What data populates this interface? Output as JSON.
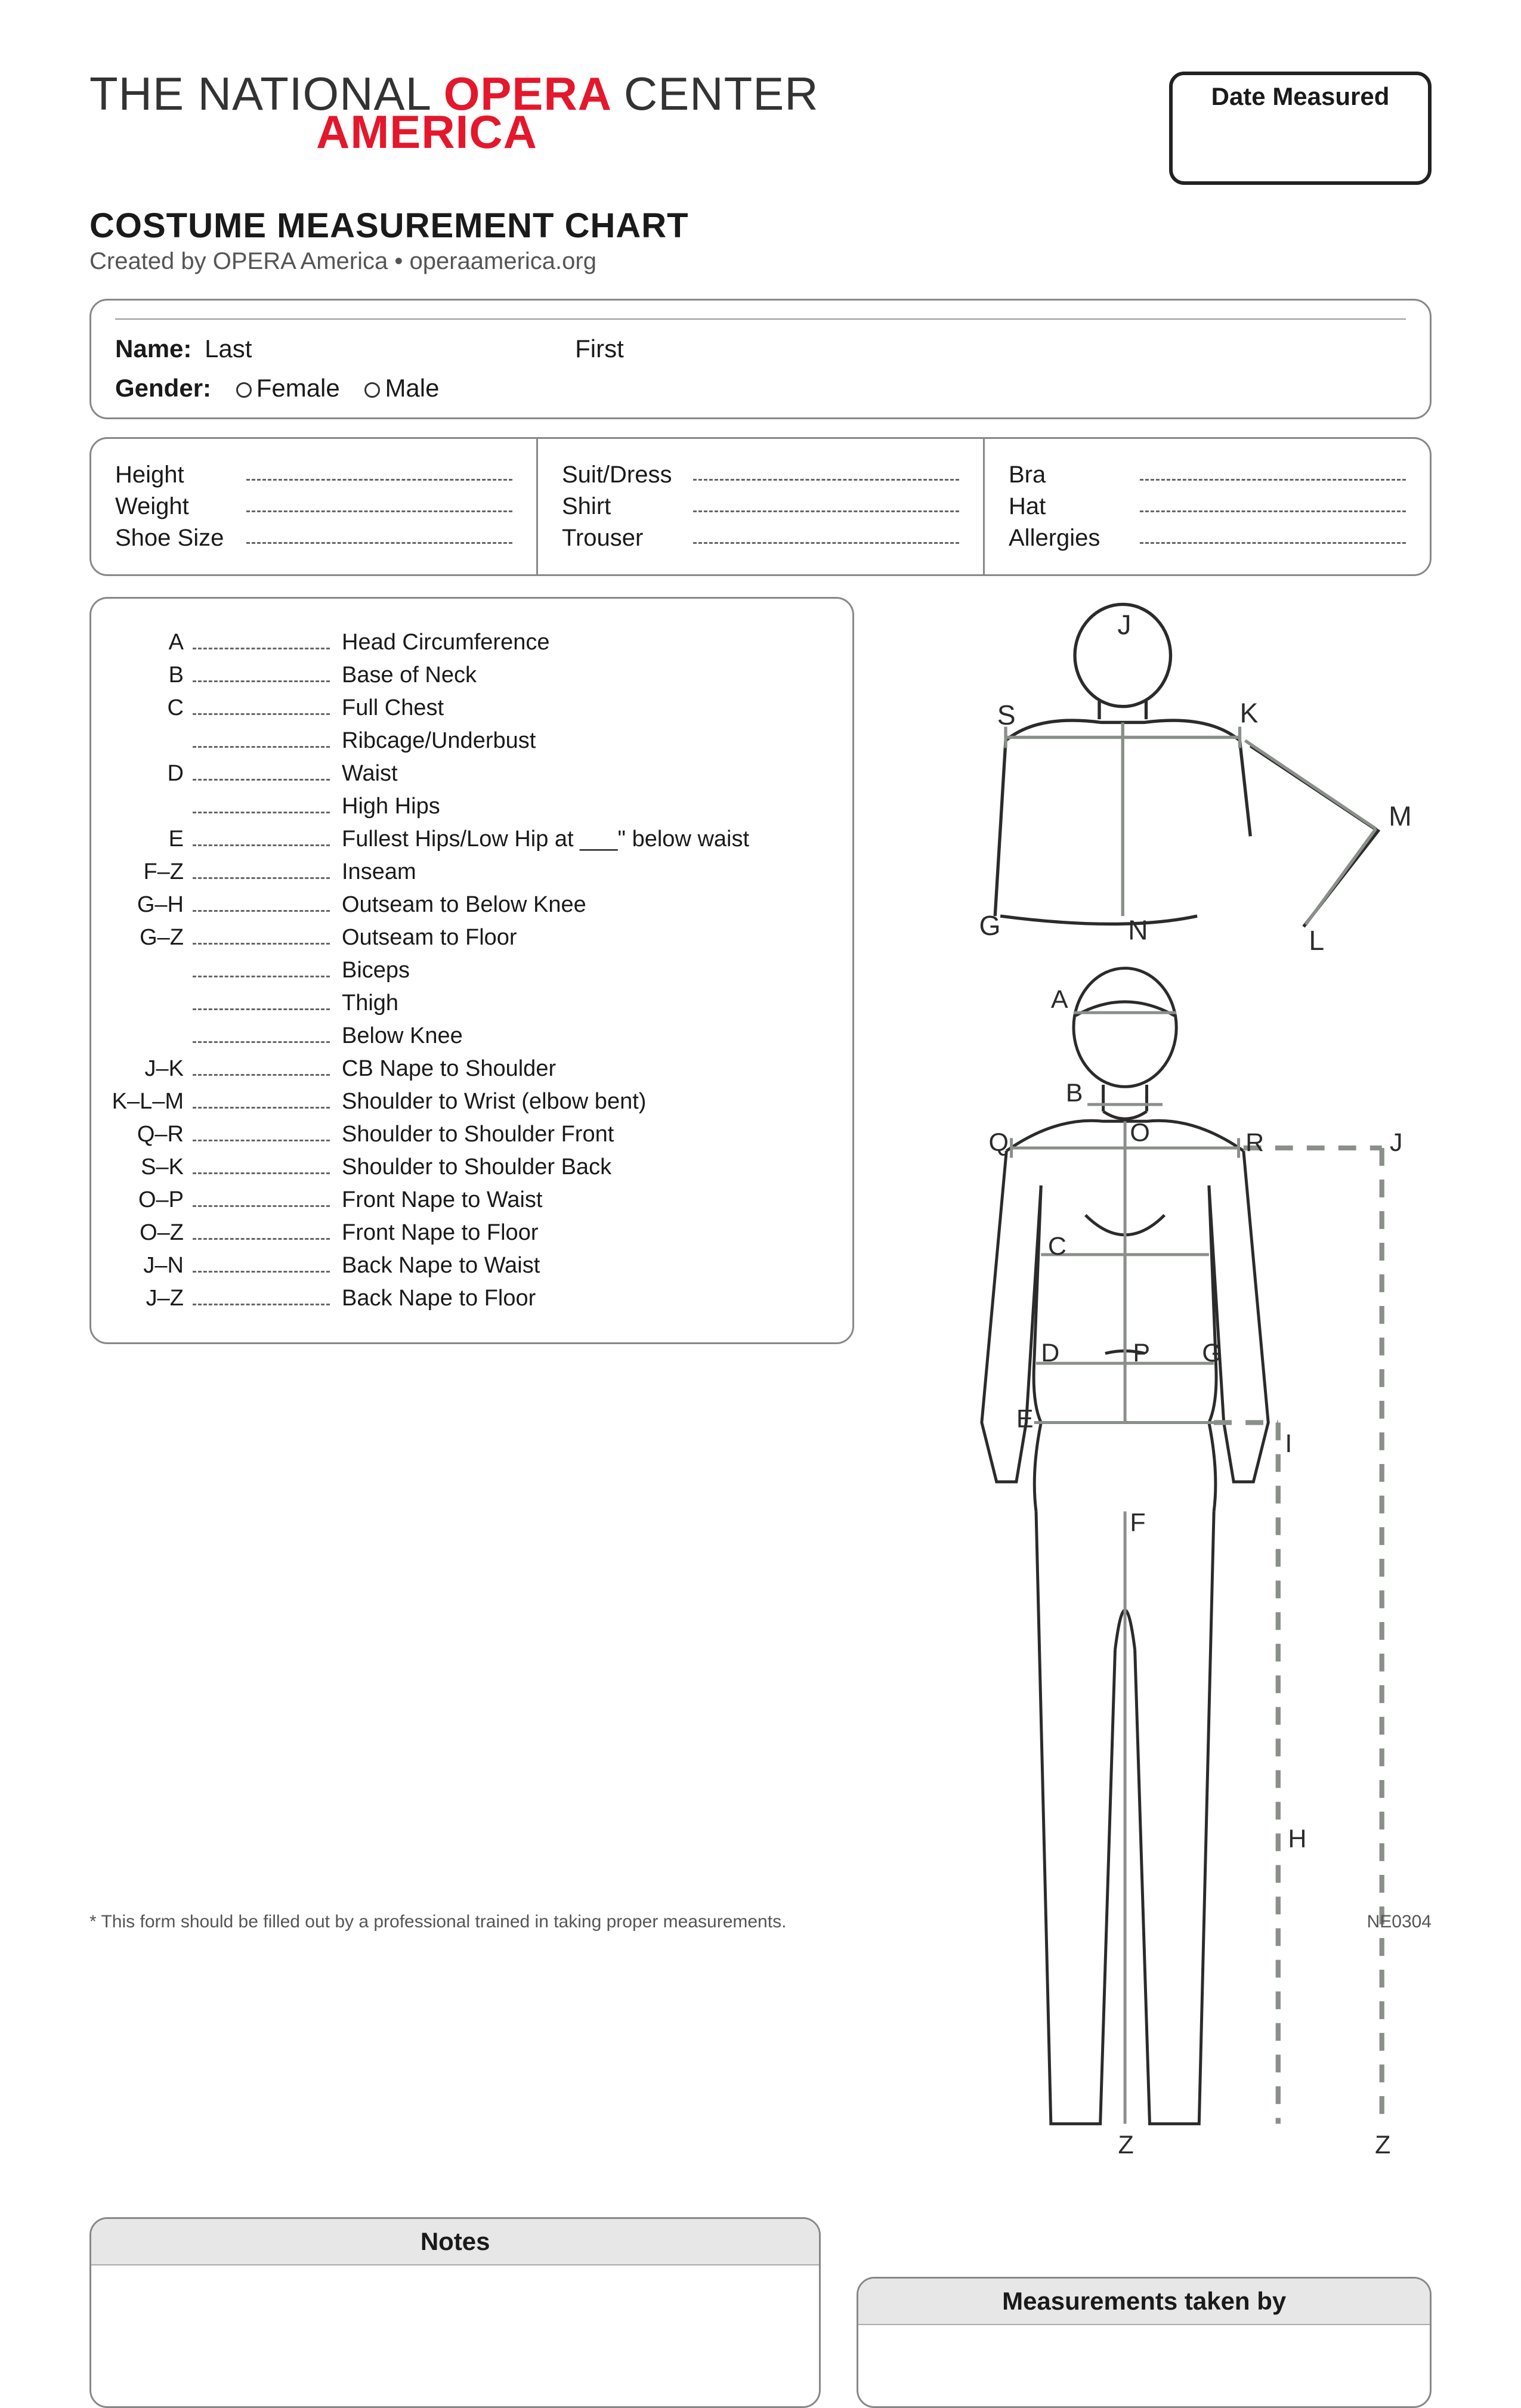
{
  "logo": {
    "line1_a": "THE NATIONAL ",
    "line1_b": "OPERA ",
    "line1_c": "CENTER",
    "line2": "AMERICA"
  },
  "date_box_label": "Date Measured",
  "title": "COSTUME MEASUREMENT CHART",
  "byline": "Created by OPERA America • operaamerica.org",
  "identity": {
    "name_label": "Name:",
    "last": "Last",
    "first": "First",
    "gender_label": "Gender:",
    "female": "Female",
    "male": "Male"
  },
  "basics": {
    "col1": [
      {
        "label": "Height"
      },
      {
        "label": "Weight"
      },
      {
        "label": "Shoe Size"
      }
    ],
    "col2": [
      {
        "label": "Suit/Dress"
      },
      {
        "label": "Shirt"
      },
      {
        "label": "Trouser"
      }
    ],
    "col3": [
      {
        "label": "Bra"
      },
      {
        "label": "Hat"
      },
      {
        "label": "Allergies"
      }
    ]
  },
  "measurements": [
    {
      "code": "A",
      "label": "Head Circumference"
    },
    {
      "code": "B",
      "label": "Base of Neck"
    },
    {
      "code": "C",
      "label": "Full Chest"
    },
    {
      "code": "",
      "label": "Ribcage/Underbust"
    },
    {
      "code": "D",
      "label": "Waist"
    },
    {
      "code": "",
      "label": "High Hips"
    },
    {
      "code": "E",
      "label": "Fullest Hips/Low Hip at ___\" below waist"
    },
    {
      "code": "F–Z",
      "label": "Inseam"
    },
    {
      "code": "G–H",
      "label": "Outseam to Below Knee"
    },
    {
      "code": "G–Z",
      "label": "Outseam to Floor"
    },
    {
      "code": "",
      "label": "Biceps"
    },
    {
      "code": "",
      "label": "Thigh"
    },
    {
      "code": "",
      "label": "Below Knee"
    },
    {
      "code": "J–K",
      "label": "CB Nape to Shoulder"
    },
    {
      "code": "K–L–M",
      "label": "Shoulder to Wrist (elbow bent)"
    },
    {
      "code": "Q–R",
      "label": "Shoulder to Shoulder Front"
    },
    {
      "code": "S–K",
      "label": "Shoulder to Shoulder Back"
    },
    {
      "code": "O–P",
      "label": "Front Nape to Waist"
    },
    {
      "code": "O–Z",
      "label": "Front Nape to Floor"
    },
    {
      "code": "J–N",
      "label": "Back Nape to Waist"
    },
    {
      "code": "J–Z",
      "label": "Back Nape to Floor"
    }
  ],
  "diagram": {
    "stroke": "#2b2b2b",
    "guide": "#8a8f8a",
    "back_labels": {
      "S": "S",
      "J": "J",
      "K": "K",
      "M": "M",
      "L": "L",
      "G": "G",
      "N": "N"
    },
    "front_labels": {
      "A": "A",
      "B": "B",
      "O": "O",
      "Q": "Q",
      "R": "R",
      "J": "J",
      "C": "C",
      "D": "D",
      "P": "P",
      "E": "E",
      "F": "F",
      "I": "I",
      "H": "H",
      "Z_left": "Z",
      "Z_right": "Z",
      "G": "G"
    }
  },
  "notes_label": "Notes",
  "taken_by_label": "Measurements taken by",
  "footer_note": "* This form should be filled out by a professional trained in taking proper measurements.",
  "form_code": "NE0304",
  "colors": {
    "accent": "#e4172c",
    "border": "#888888",
    "text": "#1a1a1a",
    "fill_head": "#e6e7e6"
  }
}
